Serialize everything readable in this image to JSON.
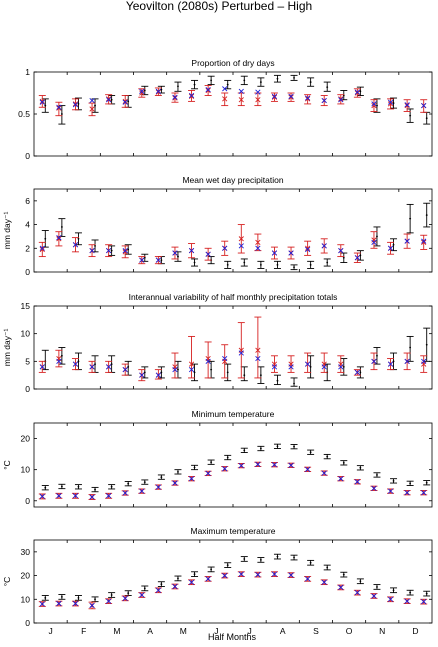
{
  "figure_title": "Yeovilton (2080s) Perturbed – High",
  "x_axis": {
    "label": "Half Months",
    "months": [
      "J",
      "F",
      "M",
      "A",
      "M",
      "J",
      "J",
      "A",
      "S",
      "O",
      "N",
      "D"
    ],
    "n_points": 24
  },
  "colors": {
    "black": "#000000",
    "red": "#d62020",
    "blue": "#1f1fd8"
  },
  "chart_data": [
    {
      "type": "errorbar",
      "title": "Proportion of dry days",
      "ylabel": "",
      "ylim": [
        0,
        1
      ],
      "yticks": [
        0,
        0.5,
        1
      ],
      "ytick_labels": [
        "0",
        "0.5",
        "1"
      ],
      "series": [
        {
          "color": "black",
          "marker": "dot",
          "values": [
            0.6,
            0.5,
            0.62,
            0.6,
            0.67,
            0.65,
            0.78,
            0.79,
            0.83,
            0.85,
            0.9,
            0.85,
            0.9,
            0.88,
            0.92,
            0.93,
            0.88,
            0.82,
            0.72,
            0.77,
            0.6,
            0.63,
            0.48,
            0.45
          ],
          "low": [
            0.52,
            0.38,
            0.55,
            0.52,
            0.62,
            0.58,
            0.73,
            0.75,
            0.77,
            0.8,
            0.85,
            0.8,
            0.85,
            0.83,
            0.88,
            0.9,
            0.83,
            0.77,
            0.67,
            0.72,
            0.52,
            0.57,
            0.4,
            0.38
          ],
          "high": [
            0.68,
            0.6,
            0.69,
            0.68,
            0.72,
            0.72,
            0.83,
            0.83,
            0.88,
            0.9,
            0.95,
            0.9,
            0.95,
            0.93,
            0.96,
            0.96,
            0.93,
            0.88,
            0.78,
            0.82,
            0.68,
            0.69,
            0.56,
            0.52
          ]
        },
        {
          "color": "red",
          "marker": "x",
          "values": [
            0.65,
            0.57,
            0.62,
            0.56,
            0.68,
            0.65,
            0.75,
            0.76,
            0.69,
            0.71,
            0.78,
            0.68,
            0.67,
            0.67,
            0.7,
            0.7,
            0.68,
            0.66,
            0.68,
            0.75,
            0.6,
            0.62,
            0.6,
            0.6
          ],
          "low": [
            0.58,
            0.48,
            0.55,
            0.48,
            0.62,
            0.58,
            0.7,
            0.72,
            0.64,
            0.65,
            0.72,
            0.6,
            0.6,
            0.6,
            0.65,
            0.65,
            0.62,
            0.6,
            0.62,
            0.7,
            0.53,
            0.56,
            0.53,
            0.52
          ],
          "high": [
            0.72,
            0.64,
            0.68,
            0.63,
            0.73,
            0.72,
            0.8,
            0.81,
            0.75,
            0.78,
            0.84,
            0.75,
            0.75,
            0.75,
            0.75,
            0.75,
            0.73,
            0.72,
            0.73,
            0.8,
            0.67,
            0.68,
            0.67,
            0.67
          ]
        },
        {
          "color": "blue",
          "marker": "x",
          "values": [
            0.64,
            0.58,
            0.61,
            0.66,
            0.67,
            0.64,
            0.77,
            0.77,
            0.7,
            0.72,
            0.79,
            0.8,
            0.77,
            0.76,
            0.71,
            0.71,
            0.69,
            0.66,
            0.67,
            0.76,
            0.62,
            0.64,
            0.61,
            0.6
          ]
        }
      ]
    },
    {
      "type": "errorbar",
      "title": "Mean wet day precipitation",
      "ylabel": "mm day⁻¹",
      "ylim": [
        0,
        7
      ],
      "yticks": [
        0,
        2,
        4,
        6
      ],
      "ytick_labels": [
        "0",
        "2",
        "4",
        "6"
      ],
      "series": [
        {
          "color": "black",
          "marker": "dot",
          "values": [
            2.8,
            3.8,
            2.8,
            2.2,
            1.8,
            1.9,
            1.2,
            1.0,
            1.3,
            0.8,
            1.0,
            0.6,
            0.8,
            0.6,
            0.6,
            0.4,
            0.6,
            0.8,
            1.2,
            1.4,
            3.0,
            2.3,
            4.5,
            4.8
          ],
          "low": [
            2.1,
            3.0,
            2.3,
            1.7,
            1.4,
            1.5,
            0.9,
            0.7,
            0.9,
            0.5,
            0.7,
            0.3,
            0.5,
            0.3,
            0.3,
            0.2,
            0.3,
            0.5,
            0.8,
            1.0,
            2.2,
            1.8,
            3.3,
            3.8
          ],
          "high": [
            3.5,
            4.5,
            3.3,
            2.7,
            2.2,
            2.3,
            1.5,
            1.3,
            1.7,
            1.1,
            1.3,
            0.9,
            1.1,
            0.9,
            0.9,
            0.6,
            0.9,
            1.1,
            1.6,
            1.8,
            3.8,
            2.8,
            5.7,
            5.8
          ]
        },
        {
          "color": "red",
          "marker": "x",
          "values": [
            1.9,
            2.8,
            2.3,
            1.8,
            1.8,
            1.7,
            1.0,
            1.0,
            1.6,
            1.8,
            1.5,
            2.0,
            2.8,
            2.5,
            1.6,
            1.6,
            2.0,
            2.2,
            1.8,
            1.2,
            2.7,
            2.0,
            2.6,
            2.5
          ],
          "low": [
            1.3,
            2.2,
            1.7,
            1.3,
            1.3,
            1.2,
            0.7,
            0.7,
            1.1,
            1.2,
            1.0,
            1.4,
            1.6,
            1.8,
            1.1,
            1.1,
            1.4,
            1.6,
            1.3,
            0.8,
            2.0,
            1.5,
            2.0,
            1.9
          ],
          "high": [
            2.5,
            3.4,
            2.9,
            2.3,
            2.3,
            2.2,
            1.3,
            1.3,
            2.1,
            2.4,
            2.0,
            2.6,
            4.0,
            3.2,
            2.1,
            2.1,
            2.6,
            2.8,
            2.3,
            1.6,
            3.4,
            2.5,
            3.2,
            3.1
          ]
        },
        {
          "color": "blue",
          "marker": "x",
          "values": [
            2.0,
            2.9,
            2.3,
            1.8,
            1.8,
            1.8,
            1.0,
            1.0,
            1.6,
            1.8,
            1.5,
            2.0,
            2.2,
            2.0,
            1.6,
            1.6,
            1.9,
            2.2,
            1.8,
            1.2,
            2.5,
            2.0,
            2.6,
            2.6
          ]
        }
      ]
    },
    {
      "type": "errorbar",
      "title": "Interannual variability of half monthly precipitation totals",
      "ylabel": "mm day⁻¹",
      "ylim": [
        0,
        15
      ],
      "yticks": [
        0,
        5,
        10,
        15
      ],
      "ytick_labels": [
        "0",
        "5",
        "10",
        "15"
      ],
      "series": [
        {
          "color": "black",
          "marker": "dot",
          "values": [
            5.0,
            6.0,
            5.0,
            4.5,
            4.5,
            4.0,
            3.0,
            3.0,
            3.5,
            3.0,
            3.5,
            3.0,
            2.5,
            2.5,
            1.5,
            1.0,
            4.0,
            3.0,
            4.0,
            3.0,
            6.0,
            5.0,
            7.5,
            8.0
          ],
          "low": [
            3.5,
            4.5,
            3.5,
            3.0,
            3.0,
            2.5,
            2.0,
            2.0,
            2.0,
            1.5,
            2.0,
            1.5,
            1.5,
            1.0,
            0.8,
            0.5,
            2.0,
            1.5,
            2.5,
            2.0,
            4.5,
            3.5,
            5.0,
            5.0
          ],
          "high": [
            7.0,
            7.5,
            6.5,
            6.0,
            6.0,
            5.0,
            4.0,
            4.0,
            5.0,
            4.5,
            5.0,
            4.5,
            4.0,
            4.0,
            2.5,
            2.0,
            6.0,
            4.5,
            5.5,
            4.0,
            7.5,
            6.5,
            9.5,
            11.0
          ]
        },
        {
          "color": "red",
          "marker": "x",
          "values": [
            4.0,
            5.5,
            4.5,
            4.0,
            4.0,
            3.5,
            2.5,
            2.5,
            4.0,
            4.5,
            5.5,
            5.0,
            7.0,
            7.0,
            4.5,
            4.5,
            4.5,
            4.5,
            4.5,
            3.0,
            5.0,
            4.5,
            5.0,
            4.5
          ],
          "low": [
            3.0,
            4.0,
            3.5,
            3.0,
            3.0,
            2.5,
            1.5,
            1.8,
            2.0,
            2.0,
            2.0,
            2.0,
            2.0,
            2.0,
            3.0,
            3.0,
            3.0,
            3.0,
            3.0,
            2.5,
            3.5,
            3.5,
            3.5,
            3.0
          ],
          "high": [
            5.0,
            7.0,
            5.5,
            5.0,
            5.0,
            4.5,
            3.5,
            3.5,
            6.5,
            9.5,
            8.5,
            8.0,
            12.0,
            13.0,
            6.0,
            6.0,
            6.5,
            6.5,
            6.0,
            3.5,
            6.5,
            5.5,
            6.5,
            6.0
          ]
        },
        {
          "color": "blue",
          "marker": "x",
          "values": [
            4.0,
            5.0,
            4.5,
            4.0,
            4.0,
            3.5,
            2.5,
            2.5,
            3.5,
            3.5,
            5.0,
            5.5,
            6.5,
            5.5,
            4.0,
            4.0,
            4.5,
            4.0,
            4.0,
            3.0,
            5.0,
            4.5,
            5.0,
            5.0
          ]
        }
      ]
    },
    {
      "type": "errorbar",
      "title": "Minimum temperature",
      "ylabel": "°C",
      "ylim": [
        -2,
        25
      ],
      "yticks": [
        0,
        10,
        20
      ],
      "ytick_labels": [
        "0",
        "10",
        "20"
      ],
      "series": [
        {
          "color": "black",
          "marker": "dot",
          "values": [
            4.2,
            4.6,
            4.5,
            3.6,
            4.5,
            5.5,
            6.0,
            7.6,
            9.3,
            10.7,
            12.4,
            13.9,
            16.2,
            16.8,
            17.5,
            17.4,
            15.6,
            14.2,
            12.2,
            10.6,
            8.3,
            6.4,
            5.6,
            5.8
          ],
          "low": [
            3.5,
            3.9,
            3.8,
            2.9,
            3.8,
            4.8,
            5.3,
            6.9,
            8.6,
            10.0,
            11.7,
            13.2,
            15.5,
            16.1,
            16.8,
            16.7,
            14.9,
            13.5,
            11.5,
            9.9,
            7.6,
            5.7,
            4.9,
            5.1
          ],
          "high": [
            4.9,
            5.3,
            5.2,
            4.3,
            5.2,
            6.2,
            6.7,
            8.3,
            10.0,
            11.4,
            13.1,
            14.6,
            16.9,
            17.5,
            18.2,
            18.1,
            16.3,
            14.9,
            12.9,
            11.3,
            9.0,
            7.1,
            6.3,
            6.5
          ]
        },
        {
          "color": "red",
          "marker": "x",
          "values": [
            1.4,
            1.6,
            1.6,
            1.2,
            1.6,
            2.5,
            3.1,
            4.4,
            5.7,
            7.1,
            8.8,
            10.3,
            11.3,
            11.7,
            11.6,
            11.4,
            10.1,
            8.9,
            7.1,
            6.1,
            4.0,
            3.1,
            2.6,
            2.6
          ],
          "low": [
            0.6,
            0.8,
            0.8,
            0.4,
            0.8,
            1.8,
            2.4,
            3.7,
            5.0,
            6.4,
            8.1,
            9.6,
            10.6,
            11.0,
            10.9,
            10.7,
            9.4,
            8.2,
            6.4,
            5.4,
            3.3,
            2.4,
            1.9,
            1.9
          ],
          "high": [
            2.2,
            2.4,
            2.4,
            2.0,
            2.4,
            3.2,
            3.8,
            5.1,
            6.4,
            7.8,
            9.5,
            11.0,
            12.0,
            12.4,
            12.3,
            12.1,
            10.8,
            9.6,
            7.8,
            6.8,
            4.7,
            3.8,
            3.3,
            3.3
          ]
        },
        {
          "color": "blue",
          "marker": "x",
          "values": [
            1.4,
            1.6,
            1.6,
            1.2,
            1.6,
            2.5,
            3.1,
            4.4,
            5.7,
            7.1,
            8.8,
            10.3,
            11.3,
            11.7,
            11.6,
            11.4,
            10.1,
            8.9,
            7.1,
            6.1,
            4.0,
            3.1,
            2.6,
            2.6
          ]
        }
      ]
    },
    {
      "type": "errorbar",
      "title": "Maximum temperature",
      "ylabel": "°C",
      "ylim": [
        0,
        35
      ],
      "yticks": [
        0,
        10,
        20,
        30
      ],
      "ytick_labels": [
        "0",
        "10",
        "20",
        "30"
      ],
      "series": [
        {
          "color": "black",
          "marker": "dot",
          "values": [
            10.6,
            11.0,
            10.6,
            10.0,
            11.8,
            12.6,
            14.6,
            16.4,
            18.8,
            20.6,
            22.6,
            24.4,
            27.0,
            26.6,
            28.0,
            27.6,
            25.4,
            23.4,
            20.4,
            17.6,
            15.2,
            13.8,
            12.8,
            12.4
          ],
          "low": [
            9.6,
            10.0,
            9.6,
            9.0,
            10.8,
            11.6,
            13.6,
            15.4,
            17.8,
            19.6,
            21.6,
            23.4,
            26.0,
            25.6,
            27.0,
            26.6,
            24.4,
            22.4,
            19.4,
            16.6,
            14.2,
            12.8,
            11.8,
            11.4
          ],
          "high": [
            11.6,
            12.0,
            11.6,
            11.0,
            12.8,
            13.6,
            15.6,
            17.4,
            19.8,
            21.6,
            23.6,
            25.4,
            28.0,
            27.6,
            29.0,
            28.6,
            26.4,
            24.4,
            21.4,
            18.6,
            16.2,
            14.8,
            13.8,
            13.4
          ]
        },
        {
          "color": "red",
          "marker": "x",
          "values": [
            8.0,
            8.2,
            8.2,
            7.4,
            9.2,
            10.4,
            11.8,
            13.8,
            15.4,
            17.2,
            18.6,
            20.0,
            20.6,
            20.4,
            20.6,
            20.2,
            18.6,
            17.2,
            15.0,
            12.8,
            11.4,
            10.0,
            9.2,
            9.0
          ],
          "low": [
            7.0,
            7.2,
            7.2,
            6.0,
            8.2,
            9.4,
            10.8,
            12.8,
            14.4,
            16.2,
            17.6,
            19.0,
            19.6,
            19.4,
            19.6,
            19.2,
            17.6,
            16.2,
            14.0,
            11.8,
            10.4,
            9.0,
            8.2,
            8.0
          ],
          "high": [
            9.0,
            9.2,
            9.2,
            8.8,
            10.2,
            11.4,
            12.8,
            14.8,
            16.4,
            18.2,
            19.6,
            21.0,
            21.6,
            21.4,
            21.6,
            21.2,
            19.6,
            18.2,
            16.0,
            13.8,
            12.4,
            11.0,
            10.2,
            10.0
          ]
        },
        {
          "color": "blue",
          "marker": "x",
          "values": [
            8.0,
            8.2,
            8.2,
            7.4,
            9.2,
            10.4,
            11.8,
            13.8,
            15.4,
            17.2,
            18.6,
            20.0,
            20.6,
            20.4,
            20.6,
            20.2,
            18.6,
            17.2,
            15.0,
            12.8,
            11.4,
            10.0,
            9.2,
            9.0
          ]
        }
      ]
    }
  ]
}
